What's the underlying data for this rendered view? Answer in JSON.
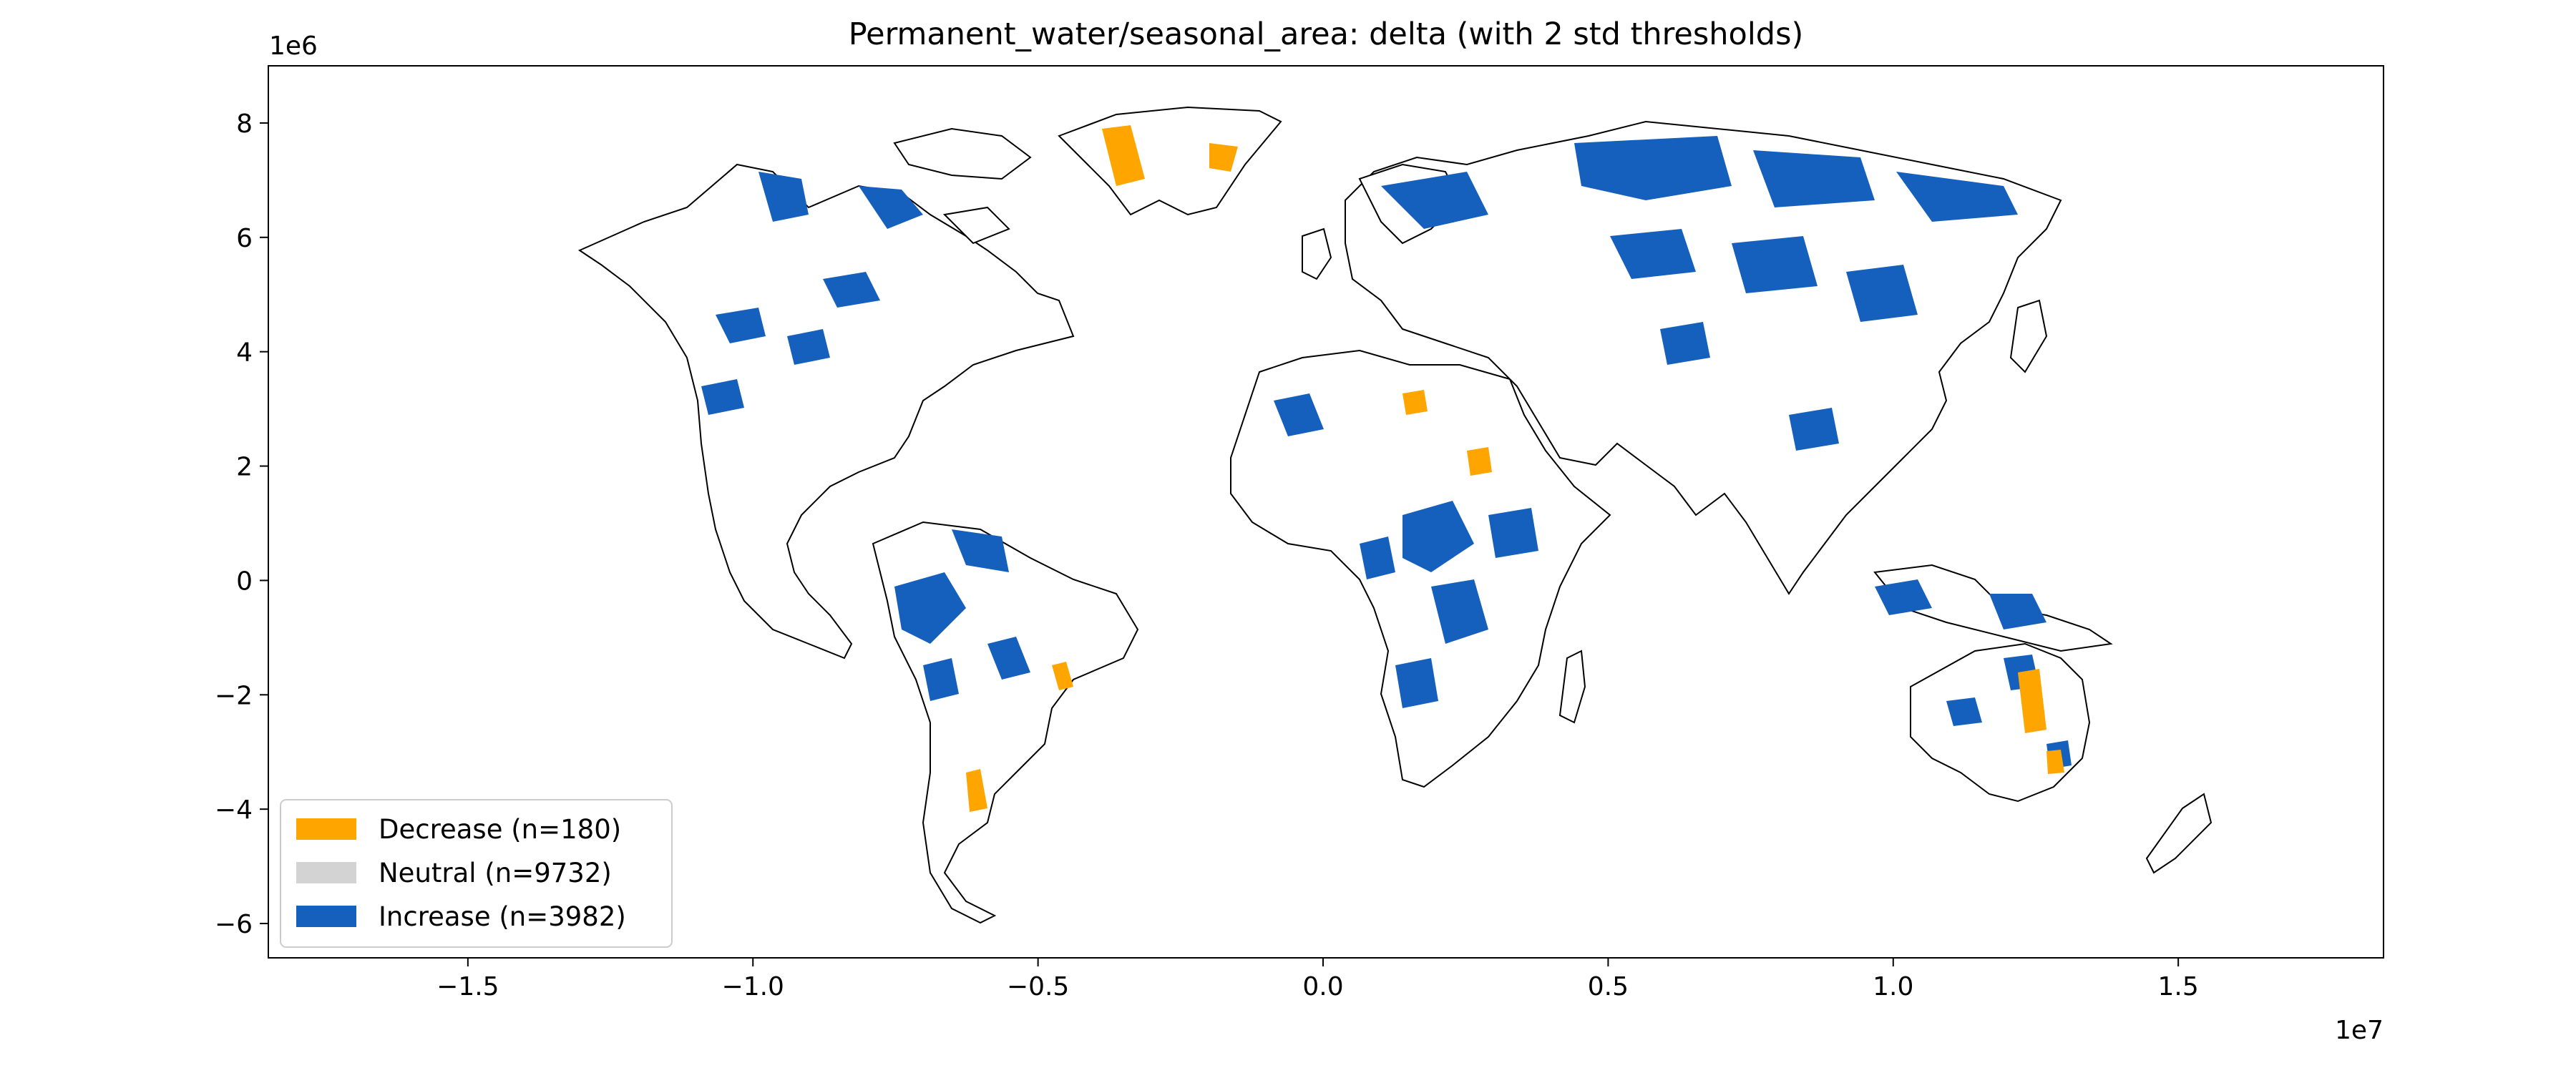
{
  "chart_data": {
    "type": "map",
    "title": "Permanent_water/seasonal_area: delta (with 2 std thresholds)",
    "x_scale_label": "1e7",
    "y_scale_label": "1e6",
    "xlim": [
      -1.85,
      1.86
    ],
    "ylim": [
      -6.6,
      9.0
    ],
    "x_ticks": [
      {
        "value": -1.5,
        "label": "−1.5"
      },
      {
        "value": -1.0,
        "label": "−1.0"
      },
      {
        "value": -0.5,
        "label": "−0.5"
      },
      {
        "value": 0.0,
        "label": "0.0"
      },
      {
        "value": 0.5,
        "label": "0.5"
      },
      {
        "value": 1.0,
        "label": "1.0"
      },
      {
        "value": 1.5,
        "label": "1.5"
      }
    ],
    "y_ticks": [
      {
        "value": 8,
        "label": "8"
      },
      {
        "value": 6,
        "label": "6"
      },
      {
        "value": 4,
        "label": "4"
      },
      {
        "value": 2,
        "label": "2"
      },
      {
        "value": 0,
        "label": "0"
      },
      {
        "value": -2,
        "label": "−2"
      },
      {
        "value": -4,
        "label": "−4"
      },
      {
        "value": -6,
        "label": "−6"
      }
    ],
    "legend_position": "lower-left",
    "legend": [
      {
        "label": "Decrease (n=180)",
        "color": "#ffa500"
      },
      {
        "label": "Neutral (n=9732)",
        "color": "#d3d3d3"
      },
      {
        "label": "Increase (n=3982)",
        "color": "#1560bd"
      }
    ],
    "colors": {
      "decrease": "#ffa500",
      "neutral": "#d3d3d3",
      "increase": "#1560bd",
      "land_outline": "#000000"
    }
  }
}
